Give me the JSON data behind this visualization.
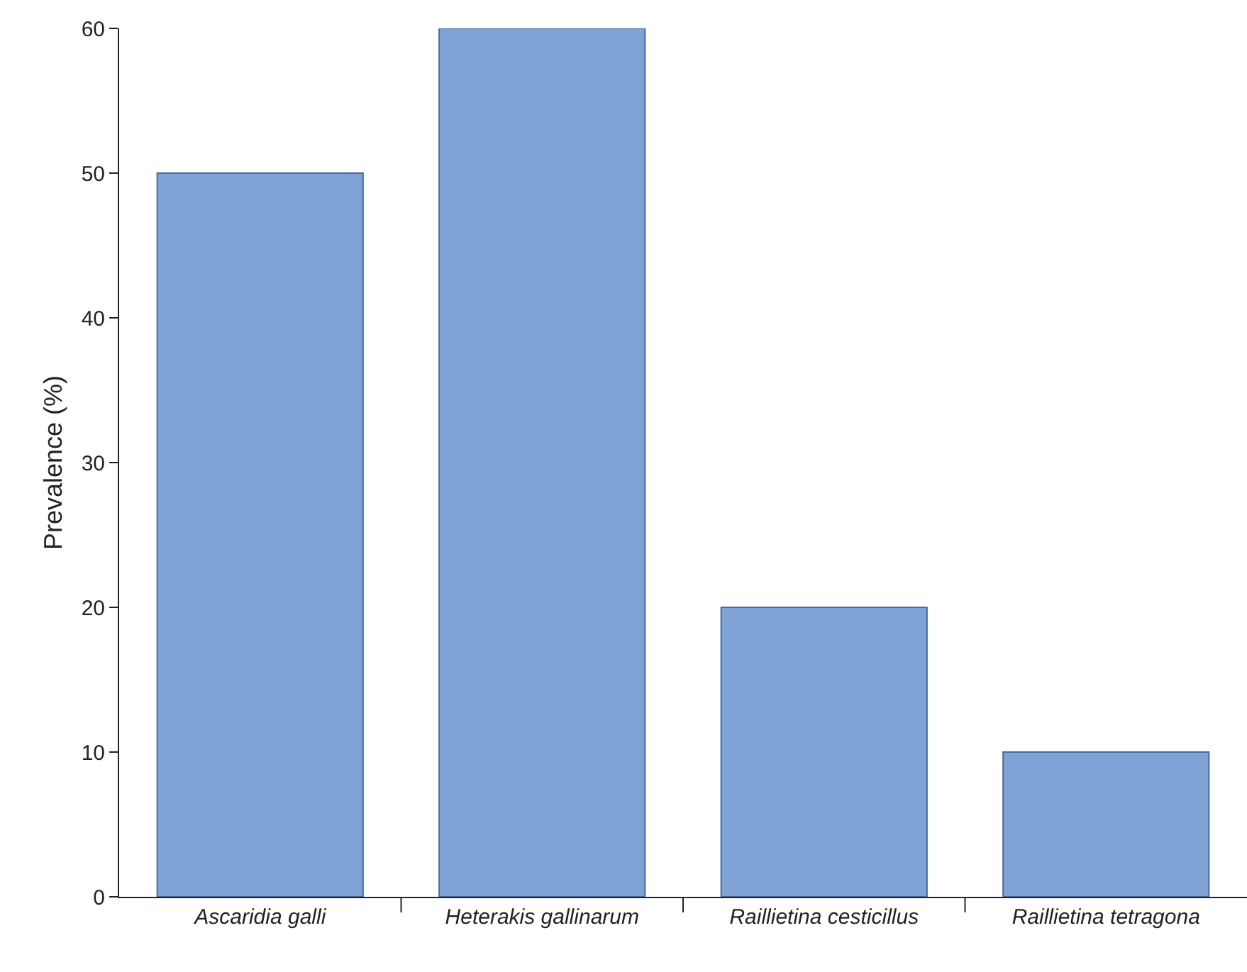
{
  "chart_data": {
    "type": "bar",
    "ylabel": "Prevalence (%)",
    "categories": [
      "Ascaridia galli",
      "Heterakis gallinarum",
      "Raillietina cesticillus",
      "Raillietina tetragona"
    ],
    "values": [
      50,
      60,
      20,
      10
    ],
    "color": "#7fa3d6",
    "ylim": [
      0,
      60
    ],
    "yticks": [
      0,
      10,
      20,
      30,
      40,
      50,
      60
    ],
    "grid": false
  }
}
